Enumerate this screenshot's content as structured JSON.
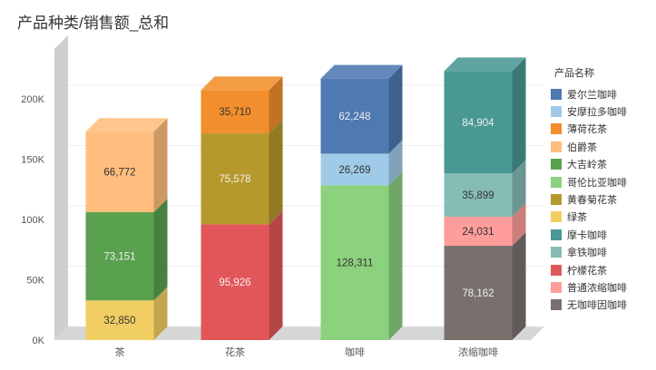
{
  "chart_data": {
    "type": "bar",
    "stacked": true,
    "title": "产品种类/销售额_总和",
    "categories": [
      "茶",
      "花茶",
      "咖啡",
      "浓缩咖啡"
    ],
    "ylim": [
      0,
      200000
    ],
    "yticks": [
      0,
      50000,
      100000,
      150000,
      200000
    ],
    "ytick_labels": [
      "0K",
      "50K",
      "100K",
      "150K",
      "200K"
    ],
    "legend_title": "产品名称",
    "legend_position": "right",
    "series": [
      {
        "name": "爱尔兰咖啡",
        "color": "#4e79b2",
        "values": [
          null,
          null,
          62248,
          null
        ]
      },
      {
        "name": "安摩拉多咖啡",
        "color": "#a0cbe8",
        "values": [
          null,
          null,
          26269,
          null
        ]
      },
      {
        "name": "薄荷花茶",
        "color": "#f28e2b",
        "values": [
          null,
          35710,
          null,
          null
        ]
      },
      {
        "name": "伯爵茶",
        "color": "#ffbe7d",
        "values": [
          66772,
          null,
          null,
          null
        ]
      },
      {
        "name": "大吉岭茶",
        "color": "#59a14f",
        "values": [
          73151,
          null,
          null,
          null
        ]
      },
      {
        "name": "哥伦比亚咖啡",
        "color": "#8cd17d",
        "values": [
          null,
          null,
          128311,
          null
        ]
      },
      {
        "name": "黄春菊花茶",
        "color": "#b6992d",
        "values": [
          null,
          75578,
          null,
          null
        ]
      },
      {
        "name": "绿茶",
        "color": "#f1ce63",
        "values": [
          32850,
          null,
          null,
          null
        ]
      },
      {
        "name": "摩卡咖啡",
        "color": "#499894",
        "values": [
          null,
          null,
          null,
          84904
        ]
      },
      {
        "name": "拿铁咖啡",
        "color": "#86bcb6",
        "values": [
          null,
          null,
          null,
          35899
        ]
      },
      {
        "name": "柠檬花茶",
        "color": "#e15759",
        "values": [
          null,
          95926,
          null,
          null
        ]
      },
      {
        "name": "普通浓缩咖啡",
        "color": "#ff9d9a",
        "values": [
          null,
          null,
          null,
          24031
        ]
      },
      {
        "name": "无咖啡因咖啡",
        "color": "#79706e",
        "values": [
          null,
          null,
          null,
          78162
        ]
      }
    ],
    "stack_order": [
      [
        "绿茶",
        "大吉岭茶",
        "伯爵茶"
      ],
      [
        "柠檬花茶",
        "黄春菊花茶",
        "薄荷花茶"
      ],
      [
        "哥伦比亚咖啡",
        "安摩拉多咖啡",
        "爱尔兰咖啡"
      ],
      [
        "无咖啡因咖啡",
        "普通浓缩咖啡",
        "拿铁咖啡",
        "摩卡咖啡"
      ]
    ],
    "data_labels": [
      [
        "32,850",
        "73,151",
        "66,772"
      ],
      [
        "95,926",
        "75,578",
        "35,710"
      ],
      [
        "128,311",
        "26,269",
        "62,248"
      ],
      [
        "78,162",
        "24,031",
        "35,899",
        "84,904"
      ]
    ]
  }
}
